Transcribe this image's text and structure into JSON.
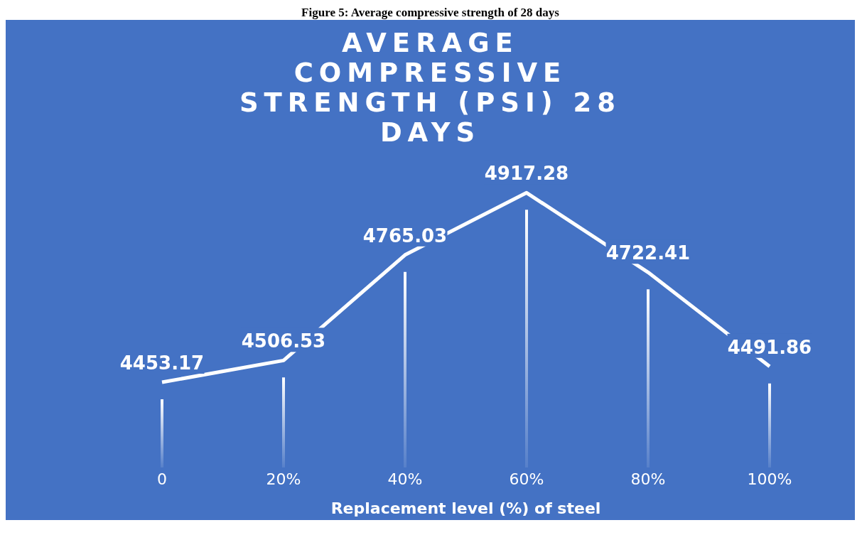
{
  "chart_data": {
    "type": "line",
    "title": "AVERAGE COMPRESSIVE STRENGTH (PSI) 28 DAYS",
    "xlabel": "Replacement level (%) of steel",
    "annotations": [
      "Figure 5: Average compressive strength of 28 days"
    ],
    "categories": [
      "0",
      "20%",
      "40%",
      "60%",
      "80%",
      "100%"
    ],
    "values": [
      4453.17,
      4506.53,
      4765.03,
      4917.28,
      4722.41,
      4491.86
    ],
    "color": "#ffffff",
    "data_labels": true,
    "marker": "none",
    "line_style": "solid",
    "grid": "x",
    "legend": false,
    "tick_labels": "x"
  }
}
